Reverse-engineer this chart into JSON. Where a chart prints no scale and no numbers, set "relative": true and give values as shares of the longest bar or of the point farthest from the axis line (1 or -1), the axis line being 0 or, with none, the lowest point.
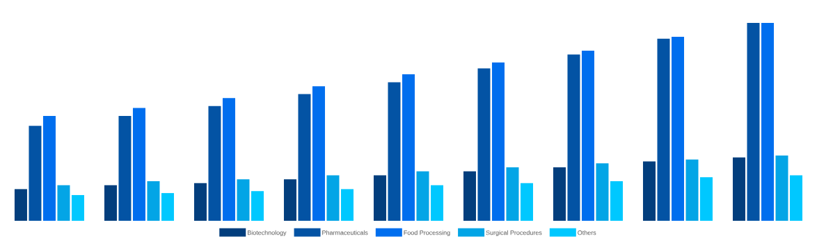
{
  "chart_data": {
    "type": "bar",
    "relative": true,
    "legend": "bottom",
    "categories": [
      null,
      null,
      null,
      null,
      null,
      null,
      null,
      null,
      null
    ],
    "series": [
      {
        "name": "Biotechnology",
        "color": "#023e7d",
        "values": [
          0.16,
          0.18,
          0.19,
          0.21,
          0.23,
          0.25,
          0.27,
          0.3,
          0.32
        ]
      },
      {
        "name": "Pharmaceuticals",
        "color": "#0353a4",
        "values": [
          0.48,
          0.53,
          0.58,
          0.64,
          0.7,
          0.77,
          0.84,
          0.92,
          1
        ]
      },
      {
        "name": "Food Processing",
        "color": "#006eee",
        "values": [
          0.53,
          0.57,
          0.62,
          0.68,
          0.74,
          0.8,
          0.86,
          0.93,
          1
        ]
      },
      {
        "name": "Surgical Procedures",
        "color": "#03a5e6",
        "values": [
          0.18,
          0.2,
          0.21,
          0.23,
          0.25,
          0.27,
          0.29,
          0.31,
          0.33
        ]
      },
      {
        "name": "Others",
        "color": "#00c8ff",
        "values": [
          0.13,
          0.14,
          0.15,
          0.16,
          0.18,
          0.19,
          0.2,
          0.22,
          0.23
        ]
      }
    ]
  }
}
